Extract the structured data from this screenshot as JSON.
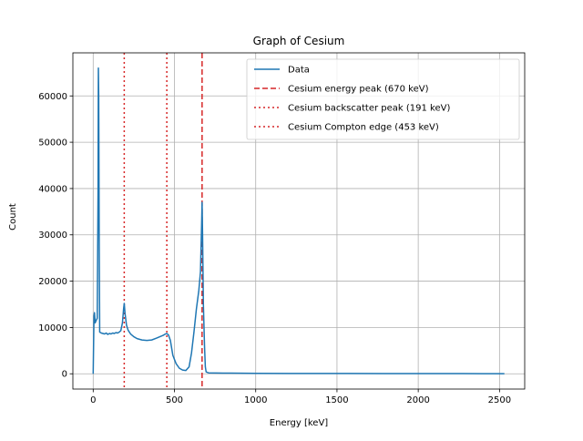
{
  "chart_data": {
    "type": "line",
    "title": "Graph of Cesium",
    "xlabel": "Energy [keV]",
    "ylabel": "Count",
    "xlim": [
      -125,
      2655
    ],
    "ylim": [
      -3300,
      69300
    ],
    "xticks": [
      0,
      500,
      1000,
      1500,
      2000,
      2500
    ],
    "yticks": [
      0,
      10000,
      20000,
      30000,
      40000,
      50000,
      60000
    ],
    "grid": true,
    "legend_position": "top-right",
    "series": [
      {
        "name": "Data",
        "color": "#1f77b4",
        "style": "solid",
        "points": [
          [
            0,
            0
          ],
          [
            5,
            12500
          ],
          [
            8,
            13200
          ],
          [
            12,
            11000
          ],
          [
            18,
            11500
          ],
          [
            25,
            12000
          ],
          [
            30,
            40000
          ],
          [
            32,
            66000
          ],
          [
            34,
            60000
          ],
          [
            37,
            30000
          ],
          [
            40,
            9000
          ],
          [
            50,
            8800
          ],
          [
            60,
            8700
          ],
          [
            70,
            8600
          ],
          [
            80,
            8800
          ],
          [
            90,
            8500
          ],
          [
            100,
            8700
          ],
          [
            110,
            8600
          ],
          [
            120,
            8800
          ],
          [
            130,
            8700
          ],
          [
            140,
            8900
          ],
          [
            150,
            8800
          ],
          [
            160,
            9000
          ],
          [
            170,
            9300
          ],
          [
            180,
            11000
          ],
          [
            187,
            14000
          ],
          [
            191,
            15200
          ],
          [
            196,
            13000
          ],
          [
            205,
            10500
          ],
          [
            215,
            9400
          ],
          [
            230,
            8600
          ],
          [
            250,
            8000
          ],
          [
            270,
            7600
          ],
          [
            300,
            7300
          ],
          [
            330,
            7200
          ],
          [
            360,
            7300
          ],
          [
            390,
            7700
          ],
          [
            410,
            8000
          ],
          [
            430,
            8300
          ],
          [
            445,
            8600
          ],
          [
            453,
            8700
          ],
          [
            463,
            8400
          ],
          [
            475,
            7200
          ],
          [
            490,
            4000
          ],
          [
            510,
            2200
          ],
          [
            530,
            1200
          ],
          [
            550,
            800
          ],
          [
            570,
            700
          ],
          [
            590,
            1500
          ],
          [
            605,
            4500
          ],
          [
            620,
            9000
          ],
          [
            635,
            14000
          ],
          [
            650,
            18000
          ],
          [
            660,
            22000
          ],
          [
            667,
            32000
          ],
          [
            670,
            37000
          ],
          [
            673,
            30000
          ],
          [
            678,
            15000
          ],
          [
            685,
            6000
          ],
          [
            690,
            1500
          ],
          [
            695,
            400
          ],
          [
            710,
            200
          ],
          [
            800,
            150
          ],
          [
            1000,
            100
          ],
          [
            1200,
            80
          ],
          [
            1500,
            60
          ],
          [
            1800,
            50
          ],
          [
            2100,
            40
          ],
          [
            2400,
            30
          ],
          [
            2530,
            20
          ]
        ]
      },
      {
        "name": "Cesium energy peak (670 keV)",
        "color": "#d62728",
        "style": "dashed",
        "x": 670
      },
      {
        "name": "Cesium backscatter peak (191 keV)",
        "color": "#d62728",
        "style": "dotted",
        "x": 191
      },
      {
        "name": "Cesium Compton edge (453 keV)",
        "color": "#d62728",
        "style": "dotted",
        "x": 453
      }
    ]
  }
}
